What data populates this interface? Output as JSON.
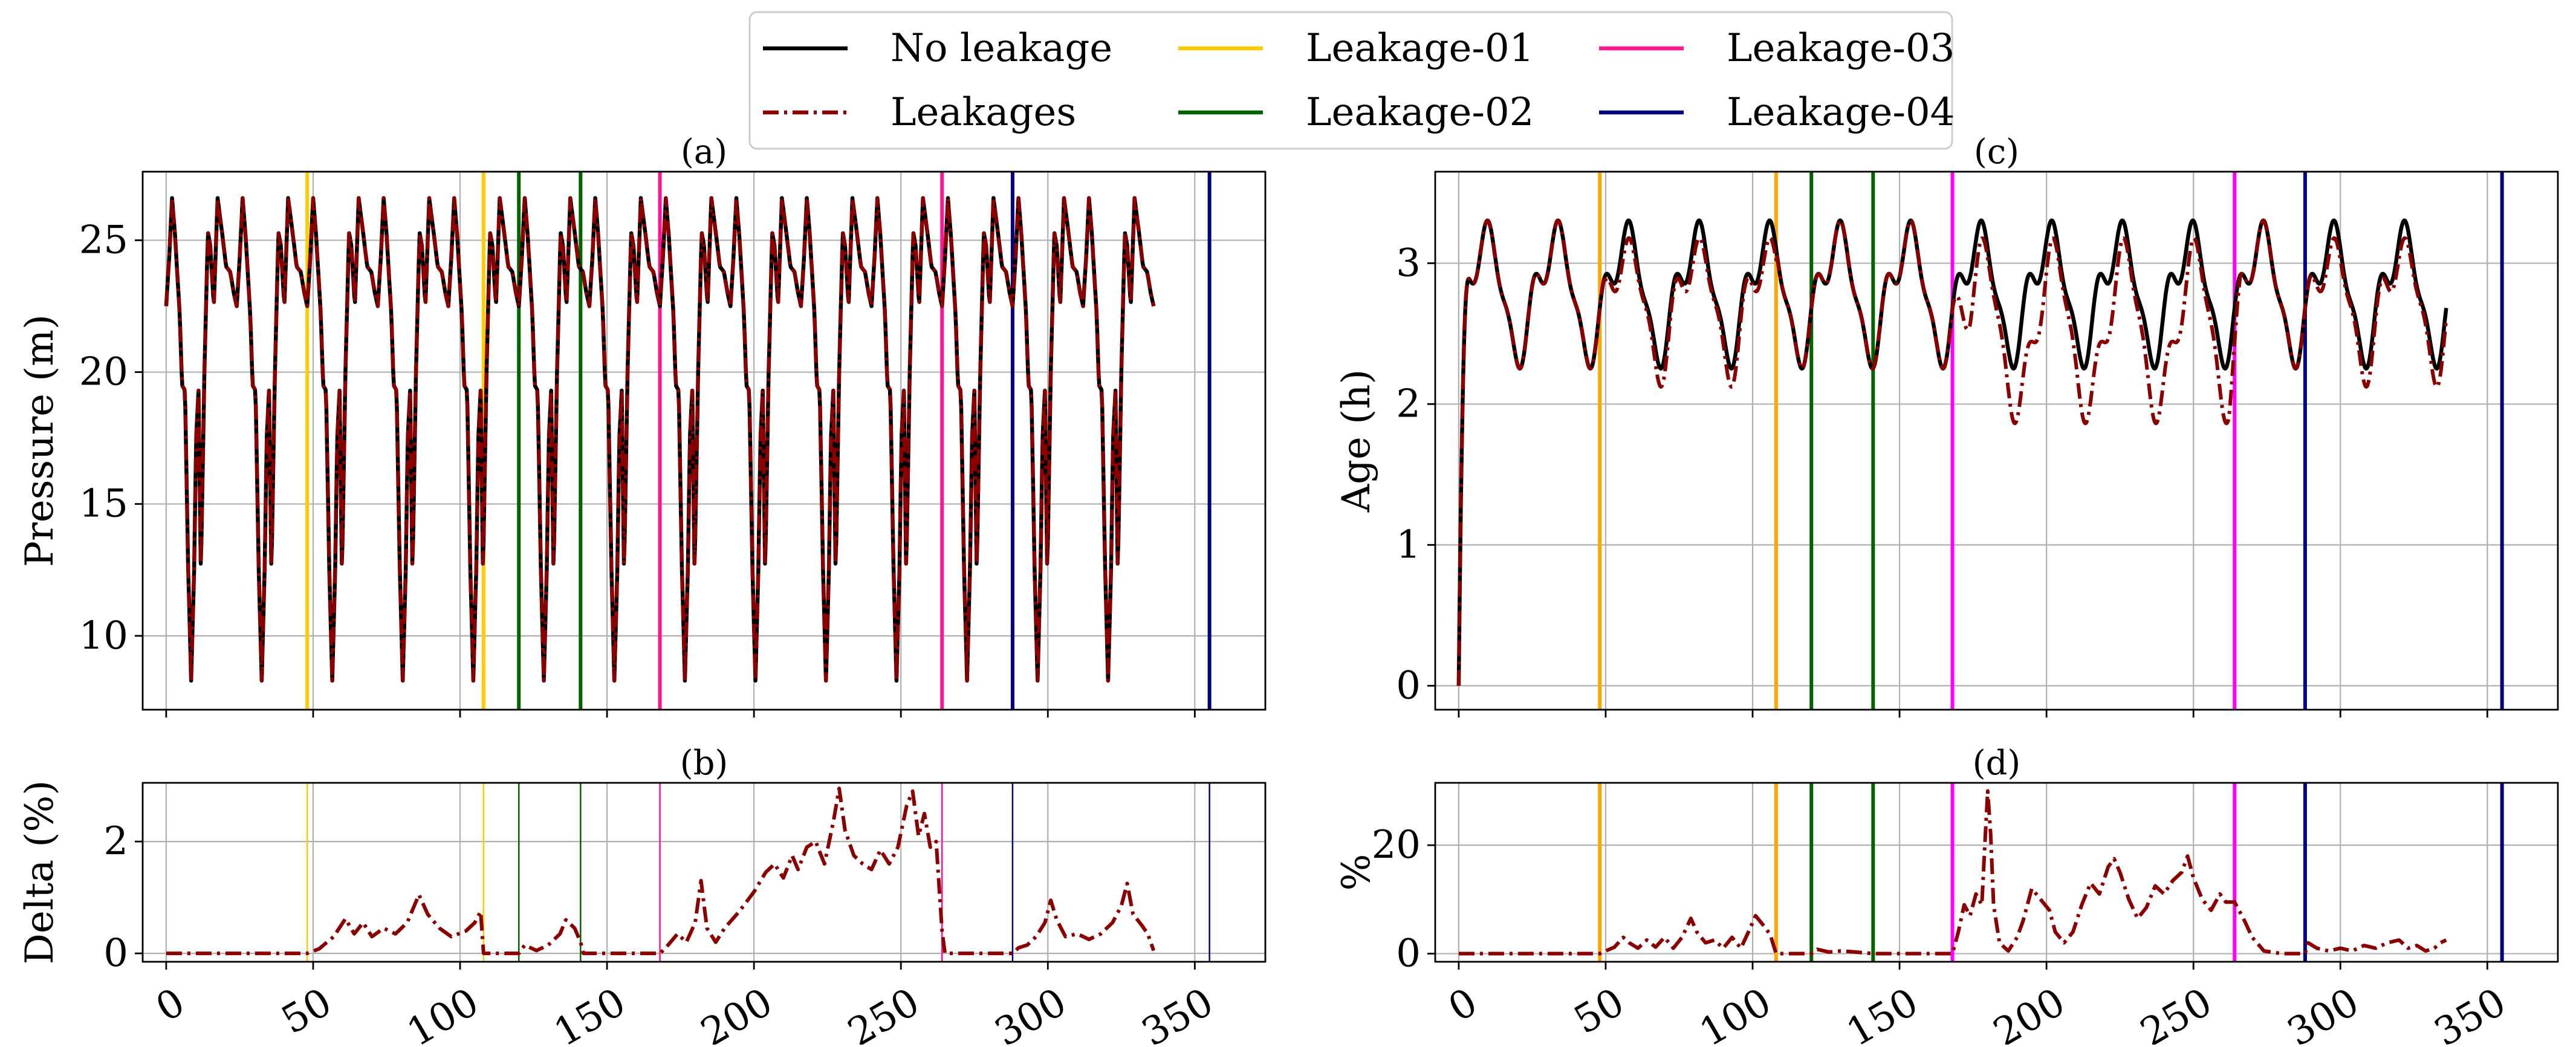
{
  "legend": {
    "entries": [
      {
        "label": "No leakage",
        "color": "#000000",
        "style": "solid"
      },
      {
        "label": "Leakages",
        "color": "#8b0000",
        "style": "dashdot"
      },
      {
        "label": "Leakage-01",
        "color": "#ffcc00",
        "style": "solid"
      },
      {
        "label": "Leakage-02",
        "color": "#006400",
        "style": "solid"
      },
      {
        "label": "Leakage-03",
        "color": "#ff1493",
        "style": "solid"
      },
      {
        "label": "Leakage-04",
        "color": "#000080",
        "style": "solid"
      }
    ]
  },
  "colors": {
    "no_leakage": "#000000",
    "leakages": "#8b0000",
    "grid": "#b0b0b0"
  },
  "chart_data": [
    {
      "id": "a",
      "type": "line",
      "title": "(a)",
      "ylabel": "Pressure (m)",
      "xlabel": "",
      "xlim": [
        -8,
        374
      ],
      "ylim": [
        7.2,
        27.6
      ],
      "yticks": [
        10,
        15,
        20,
        25
      ],
      "xticks": [
        0,
        50,
        100,
        150,
        200,
        250,
        300,
        350
      ],
      "grid": true,
      "xticklabels_shown": false,
      "series": [
        {
          "name": "No leakage",
          "generator": "pressure",
          "x_range": [
            0,
            336
          ],
          "samples": 1345
        },
        {
          "name": "Leakages",
          "generator": "pressure",
          "x_range": [
            0,
            336
          ],
          "samples": 1345
        }
      ],
      "leak_lines": [
        {
          "x": 48,
          "color": "#ffcc00"
        },
        {
          "x": 108,
          "color": "#ffcc00"
        },
        {
          "x": 120,
          "color": "#006400"
        },
        {
          "x": 141,
          "color": "#006400"
        },
        {
          "x": 168,
          "color": "#ff1493"
        },
        {
          "x": 264,
          "color": "#ff1493"
        },
        {
          "x": 288,
          "color": "#000080"
        },
        {
          "x": 355,
          "color": "#000080"
        }
      ]
    },
    {
      "id": "b",
      "type": "line",
      "title": "(b)",
      "ylabel": "Delta (%)",
      "xlabel": "",
      "xlim": [
        -8,
        374
      ],
      "ylim": [
        -0.15,
        3.05
      ],
      "yticks": [
        0,
        2
      ],
      "xticks": [
        0,
        50,
        100,
        150,
        200,
        250,
        300,
        350
      ],
      "grid": true,
      "xticklabels_shown": true,
      "series": [
        {
          "name": "Leakages",
          "points": [
            [
              0,
              0
            ],
            [
              48,
              0
            ],
            [
              52,
              0.08
            ],
            [
              57,
              0.3
            ],
            [
              61,
              0.62
            ],
            [
              64,
              0.35
            ],
            [
              67,
              0.55
            ],
            [
              70,
              0.3
            ],
            [
              74,
              0.45
            ],
            [
              78,
              0.35
            ],
            [
              82,
              0.55
            ],
            [
              86,
              1.05
            ],
            [
              89,
              0.7
            ],
            [
              93,
              0.45
            ],
            [
              97,
              0.3
            ],
            [
              102,
              0.4
            ],
            [
              105,
              0.55
            ],
            [
              107,
              0.75
            ],
            [
              108,
              0
            ],
            [
              120,
              0
            ],
            [
              122,
              0.15
            ],
            [
              126,
              0.05
            ],
            [
              130,
              0.15
            ],
            [
              134,
              0.35
            ],
            [
              136,
              0.6
            ],
            [
              139,
              0.45
            ],
            [
              141,
              0.2
            ],
            [
              142,
              0
            ],
            [
              168,
              0
            ],
            [
              170,
              0.1
            ],
            [
              174,
              0.35
            ],
            [
              177,
              0.2
            ],
            [
              180,
              0.55
            ],
            [
              182,
              1.3
            ],
            [
              184,
              0.45
            ],
            [
              187,
              0.2
            ],
            [
              190,
              0.45
            ],
            [
              195,
              0.75
            ],
            [
              200,
              1.1
            ],
            [
              204,
              1.45
            ],
            [
              207,
              1.6
            ],
            [
              210,
              1.35
            ],
            [
              213,
              1.75
            ],
            [
              215,
              1.5
            ],
            [
              218,
              1.9
            ],
            [
              221,
              2.0
            ],
            [
              224,
              1.6
            ],
            [
              227,
              2.35
            ],
            [
              229,
              2.95
            ],
            [
              231,
              2.2
            ],
            [
              234,
              1.75
            ],
            [
              237,
              1.6
            ],
            [
              240,
              1.5
            ],
            [
              243,
              1.85
            ],
            [
              246,
              1.6
            ],
            [
              249,
              1.9
            ],
            [
              252,
              2.65
            ],
            [
              254,
              2.9
            ],
            [
              256,
              2.1
            ],
            [
              258,
              2.5
            ],
            [
              260,
              1.9
            ],
            [
              262,
              2.0
            ],
            [
              264,
              0.4
            ],
            [
              265,
              0
            ],
            [
              288,
              0
            ],
            [
              290,
              0.1
            ],
            [
              293,
              0.15
            ],
            [
              296,
              0.3
            ],
            [
              299,
              0.55
            ],
            [
              301,
              0.95
            ],
            [
              303,
              0.6
            ],
            [
              306,
              0.3
            ],
            [
              310,
              0.35
            ],
            [
              314,
              0.25
            ],
            [
              318,
              0.35
            ],
            [
              322,
              0.55
            ],
            [
              325,
              0.85
            ],
            [
              327,
              1.25
            ],
            [
              329,
              0.7
            ],
            [
              332,
              0.5
            ],
            [
              334,
              0.35
            ],
            [
              336,
              0.05
            ]
          ]
        }
      ],
      "leak_lines": [
        {
          "x": 48,
          "color": "#ffcc00"
        },
        {
          "x": 108,
          "color": "#ffcc00"
        },
        {
          "x": 120,
          "color": "#006400"
        },
        {
          "x": 141,
          "color": "#006400"
        },
        {
          "x": 168,
          "color": "#ff1493"
        },
        {
          "x": 264,
          "color": "#ff1493"
        },
        {
          "x": 288,
          "color": "#000080"
        },
        {
          "x": 355,
          "color": "#000080"
        }
      ]
    },
    {
      "id": "c",
      "type": "line",
      "title": "(c)",
      "ylabel": "Age (h)",
      "xlabel": "",
      "xlim": [
        -8,
        374
      ],
      "ylim": [
        -0.17,
        3.65
      ],
      "yticks": [
        0,
        1,
        2,
        3
      ],
      "xticks": [
        0,
        50,
        100,
        150,
        200,
        250,
        300,
        350
      ],
      "grid": true,
      "xticklabels_shown": false,
      "series": [
        {
          "name": "No leakage",
          "generator": "age",
          "x_range": [
            0,
            336
          ],
          "samples": 1345
        },
        {
          "name": "Leakages",
          "generator": "age_leak",
          "x_range": [
            0,
            336
          ],
          "samples": 1345
        }
      ],
      "leak_lines": [
        {
          "x": 48,
          "color": "#ffa500"
        },
        {
          "x": 108,
          "color": "#ffa500"
        },
        {
          "x": 120,
          "color": "#006400"
        },
        {
          "x": 141,
          "color": "#006400"
        },
        {
          "x": 168,
          "color": "#ff00ff"
        },
        {
          "x": 264,
          "color": "#ff00ff"
        },
        {
          "x": 288,
          "color": "#000080"
        },
        {
          "x": 355,
          "color": "#000080"
        }
      ]
    },
    {
      "id": "d",
      "type": "line",
      "title": "(d)",
      "ylabel": "%",
      "xlabel": "",
      "xlim": [
        -8,
        374
      ],
      "ylim": [
        -1.5,
        31.5
      ],
      "yticks": [
        0,
        20
      ],
      "xticks": [
        0,
        50,
        100,
        150,
        200,
        250,
        300,
        350
      ],
      "grid": true,
      "xticklabels_shown": true,
      "series": [
        {
          "name": "Leakages",
          "points": [
            [
              0,
              0
            ],
            [
              48,
              0
            ],
            [
              50,
              0.5
            ],
            [
              53,
              1.2
            ],
            [
              56,
              3.0
            ],
            [
              58,
              2.0
            ],
            [
              61,
              1.0
            ],
            [
              64,
              2.5
            ],
            [
              67,
              1.2
            ],
            [
              70,
              3.0
            ],
            [
              73,
              1.0
            ],
            [
              76,
              3.0
            ],
            [
              79,
              6.5
            ],
            [
              81,
              4.0
            ],
            [
              84,
              2.0
            ],
            [
              87,
              2.5
            ],
            [
              90,
              1.0
            ],
            [
              93,
              3.0
            ],
            [
              96,
              1.0
            ],
            [
              99,
              4.5
            ],
            [
              101,
              7.0
            ],
            [
              104,
              5.0
            ],
            [
              106,
              3.5
            ],
            [
              108,
              0
            ],
            [
              120,
              0
            ],
            [
              122,
              0.8
            ],
            [
              126,
              0.3
            ],
            [
              130,
              0.5
            ],
            [
              135,
              0.3
            ],
            [
              141,
              0
            ],
            [
              168,
              0
            ],
            [
              170,
              4.0
            ],
            [
              172,
              9.0
            ],
            [
              174,
              7.0
            ],
            [
              176,
              11.0
            ],
            [
              178,
              9.0
            ],
            [
              179,
              20.0
            ],
            [
              180,
              30.0
            ],
            [
              181,
              22.0
            ],
            [
              182,
              9.0
            ],
            [
              184,
              2.0
            ],
            [
              187,
              0.5
            ],
            [
              190,
              3.0
            ],
            [
              192,
              6.0
            ],
            [
              195,
              12.0
            ],
            [
              198,
              10.0
            ],
            [
              201,
              8.0
            ],
            [
              203,
              4.0
            ],
            [
              206,
              2.0
            ],
            [
              209,
              4.0
            ],
            [
              212,
              9.0
            ],
            [
              215,
              13.0
            ],
            [
              218,
              11.0
            ],
            [
              221,
              16.0
            ],
            [
              223,
              17.5
            ],
            [
              225,
              15.0
            ],
            [
              228,
              10.0
            ],
            [
              231,
              6.5
            ],
            [
              234,
              8.5
            ],
            [
              237,
              12.5
            ],
            [
              240,
              11.0
            ],
            [
              243,
              13.5
            ],
            [
              246,
              15.0
            ],
            [
              248,
              18.0
            ],
            [
              250,
              14.0
            ],
            [
              253,
              10.0
            ],
            [
              256,
              8.0
            ],
            [
              259,
              11.0
            ],
            [
              261,
              9.5
            ],
            [
              264,
              9.5
            ],
            [
              267,
              6.5
            ],
            [
              270,
              3.0
            ],
            [
              274,
              0.5
            ],
            [
              280,
              0
            ],
            [
              288,
              0
            ],
            [
              289,
              2.0
            ],
            [
              292,
              1.0
            ],
            [
              296,
              0.5
            ],
            [
              300,
              1.0
            ],
            [
              304,
              0.5
            ],
            [
              308,
              1.5
            ],
            [
              312,
              1.0
            ],
            [
              316,
              2.0
            ],
            [
              320,
              2.5
            ],
            [
              323,
              1.0
            ],
            [
              326,
              1.5
            ],
            [
              329,
              0.5
            ],
            [
              332,
              1.0
            ],
            [
              334,
              2.0
            ],
            [
              336,
              2.5
            ]
          ]
        }
      ],
      "leak_lines": [
        {
          "x": 48,
          "color": "#ffa500"
        },
        {
          "x": 108,
          "color": "#ffa500"
        },
        {
          "x": 120,
          "color": "#006400"
        },
        {
          "x": 141,
          "color": "#006400"
        },
        {
          "x": 168,
          "color": "#ff00ff"
        },
        {
          "x": 264,
          "color": "#ff00ff"
        },
        {
          "x": 288,
          "color": "#000080"
        },
        {
          "x": 355,
          "color": "#000080"
        }
      ]
    }
  ]
}
